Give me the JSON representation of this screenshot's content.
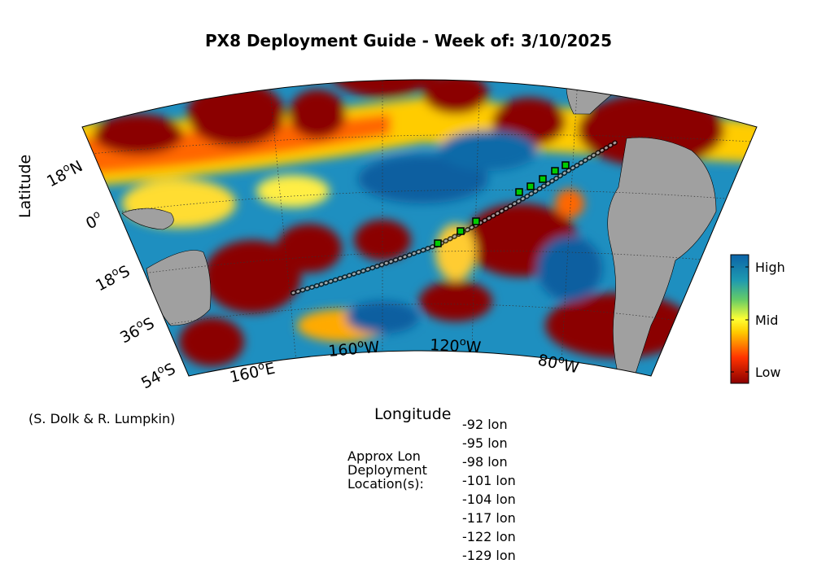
{
  "title": "PX8 Deployment Guide - Week of: 3/10/2025",
  "axes": {
    "ylabel": "Latitude",
    "xlabel": "Longitude",
    "lat_ticks": [
      {
        "deg": "18",
        "hemi": "N"
      },
      {
        "deg": "0",
        "hemi": ""
      },
      {
        "deg": "18",
        "hemi": "S"
      },
      {
        "deg": "36",
        "hemi": "S"
      },
      {
        "deg": "54",
        "hemi": "S"
      }
    ],
    "lon_ticks": [
      {
        "deg": "160",
        "hemi": "E"
      },
      {
        "deg": "160",
        "hemi": "W"
      },
      {
        "deg": "120",
        "hemi": "W"
      },
      {
        "deg": "80",
        "hemi": "W"
      }
    ]
  },
  "credit": "(S. Dolk & R. Lumpkin)",
  "deployment_label": [
    "Approx Lon",
    "Deployment",
    "Location(s):"
  ],
  "deployment_lons": [
    "-92 lon",
    "-95 lon",
    "-98 lon",
    "-101 lon",
    "-104 lon",
    "-117 lon",
    "-122 lon",
    "-129 lon"
  ],
  "colorbar": {
    "high": "High",
    "mid": "Mid",
    "low": "Low",
    "colors": [
      "#8b0000",
      "#ff3300",
      "#ffcc00",
      "#ffff33",
      "#66cc66",
      "#1e9ab0",
      "#0b63a8"
    ]
  },
  "map_colors": {
    "land": "#a0a0a0",
    "low": "#8b0000",
    "high": "#0c6fad",
    "track": "#000000",
    "deploy_marker": "#00cc00"
  }
}
